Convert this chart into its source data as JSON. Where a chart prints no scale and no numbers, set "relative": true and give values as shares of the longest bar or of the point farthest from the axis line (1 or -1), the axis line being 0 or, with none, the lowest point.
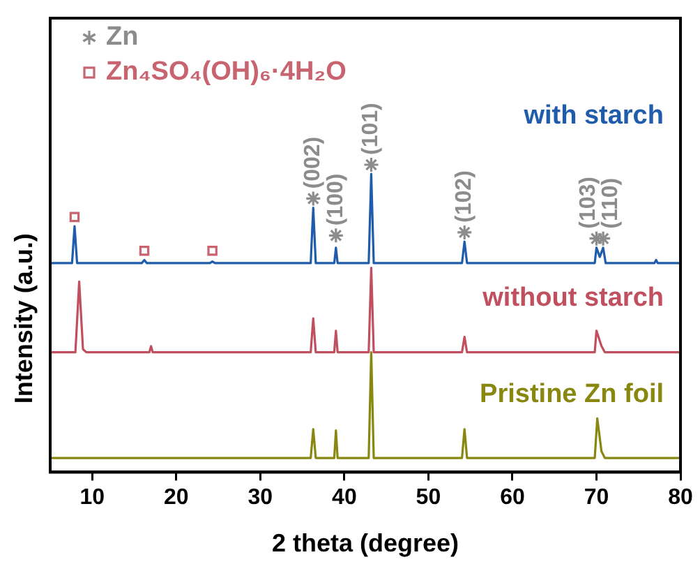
{
  "chart_data": {
    "type": "line",
    "relative": true,
    "xlabel": "2 theta (degree)",
    "ylabel": "Intensity (a.u.)",
    "legend": "top left",
    "xlim": [
      5,
      80
    ],
    "xticks": [
      10,
      20,
      30,
      40,
      50,
      60,
      70,
      80
    ],
    "series": [
      {
        "name": "with starch",
        "color": "#1f5cac",
        "x": [
          5,
          7.6,
          7.9,
          8.2,
          15.9,
          16.2,
          16.5,
          24.0,
          24.3,
          24.6,
          36.0,
          36.3,
          36.6,
          38.8,
          39.0,
          39.2,
          42.9,
          43.2,
          43.5,
          54.0,
          54.3,
          54.6,
          69.8,
          70.0,
          70.4,
          70.8,
          71.1,
          76.9,
          77.1,
          77.3,
          80
        ],
        "values": [
          0.68,
          0.68,
          0.8,
          0.68,
          0.68,
          0.69,
          0.68,
          0.68,
          0.685,
          0.68,
          0.68,
          0.86,
          0.68,
          0.68,
          0.73,
          0.68,
          0.68,
          0.97,
          0.68,
          0.68,
          0.75,
          0.68,
          0.68,
          0.73,
          0.7,
          0.73,
          0.68,
          0.68,
          0.69,
          0.68,
          0.68
        ]
      },
      {
        "name": "without starch",
        "color": "#c0505f",
        "x": [
          5,
          8.0,
          8.45,
          8.9,
          9.3,
          16.8,
          17.0,
          17.2,
          36.0,
          36.3,
          36.6,
          38.8,
          39.0,
          39.2,
          42.9,
          43.2,
          43.5,
          54.0,
          54.3,
          54.6,
          69.8,
          70.0,
          70.6,
          71.0,
          80
        ],
        "values": [
          0.39,
          0.39,
          0.62,
          0.4,
          0.39,
          0.39,
          0.41,
          0.39,
          0.39,
          0.5,
          0.39,
          0.39,
          0.46,
          0.39,
          0.39,
          0.665,
          0.39,
          0.39,
          0.44,
          0.39,
          0.39,
          0.46,
          0.41,
          0.39,
          0.39
        ]
      },
      {
        "name": "Pristine Zn foil",
        "color": "#888810",
        "x": [
          5,
          36.0,
          36.3,
          36.6,
          38.8,
          39.0,
          39.2,
          42.9,
          43.2,
          43.5,
          54.0,
          54.3,
          54.6,
          69.8,
          70.1,
          70.6,
          71.0,
          80
        ],
        "values": [
          0.046,
          0.046,
          0.14,
          0.046,
          0.046,
          0.136,
          0.046,
          0.046,
          0.39,
          0.046,
          0.046,
          0.14,
          0.046,
          0.046,
          0.175,
          0.068,
          0.046,
          0.046
        ]
      },
      {
        "name": "Zn",
        "type": "scatter",
        "marker": "cross",
        "color": "#8c8c8c",
        "x": [
          36.3,
          39.0,
          43.2,
          54.3,
          70.0,
          70.8
        ],
        "values": [
          0.89,
          0.77,
          1.0,
          0.78,
          0.76,
          0.76
        ]
      },
      {
        "name": "Zn₄SO₄(OH)₆·4H₂O",
        "type": "scatter",
        "marker": "square",
        "color": "#c86470",
        "x": [
          7.9,
          16.2,
          24.3
        ],
        "values": [
          0.83,
          0.72,
          0.72
        ]
      }
    ],
    "annotations": [
      {
        "text": "(002)",
        "x": 36.3,
        "y": 0.89
      },
      {
        "text": "(100)",
        "x": 39.0,
        "y": 0.77
      },
      {
        "text": "(101)",
        "x": 43.2,
        "y": 1.0
      },
      {
        "text": "(102)",
        "x": 54.3,
        "y": 0.78
      },
      {
        "text": "(103)",
        "x": 70.0,
        "y": 0.76
      },
      {
        "text": "(110)",
        "x": 70.8,
        "y": 0.76
      }
    ]
  }
}
